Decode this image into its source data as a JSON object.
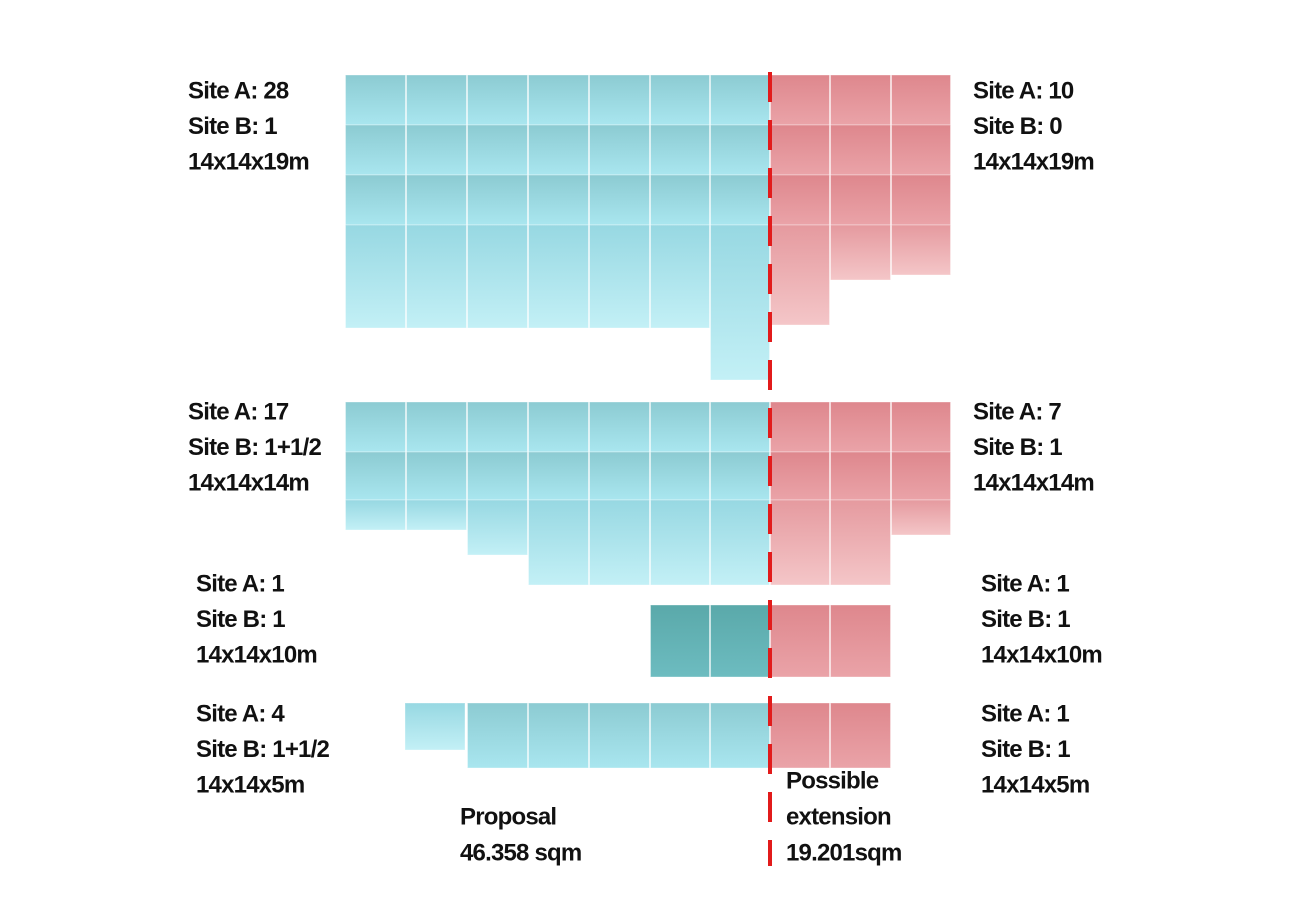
{
  "groups": [
    {
      "left": [
        "Site A: 28",
        "Site B: 1",
        "14x14x19m"
      ],
      "right": [
        "Site A: 10",
        "Site B: 0",
        "14x14x19m"
      ]
    },
    {
      "left": [
        "Site A: 17",
        "Site B: 1+1/2",
        "14x14x14m"
      ],
      "right": [
        "Site A: 7",
        "Site B: 1",
        "14x14x14m"
      ]
    },
    {
      "left": [
        "Site A: 1",
        "Site B: 1",
        "14x14x10m"
      ],
      "right": [
        "Site A: 1",
        "Site B: 1",
        "14x14x10m"
      ]
    },
    {
      "left": [
        "Site A: 4",
        "Site B: 1+1/2",
        "14x14x5m"
      ],
      "right": [
        "Site A: 1",
        "Site B: 1",
        "14x14x5m"
      ]
    }
  ],
  "proposal": [
    "Proposal",
    "46.358 sqm"
  ],
  "extension": [
    "Possible",
    "extension",
    "19.201sqm"
  ]
}
